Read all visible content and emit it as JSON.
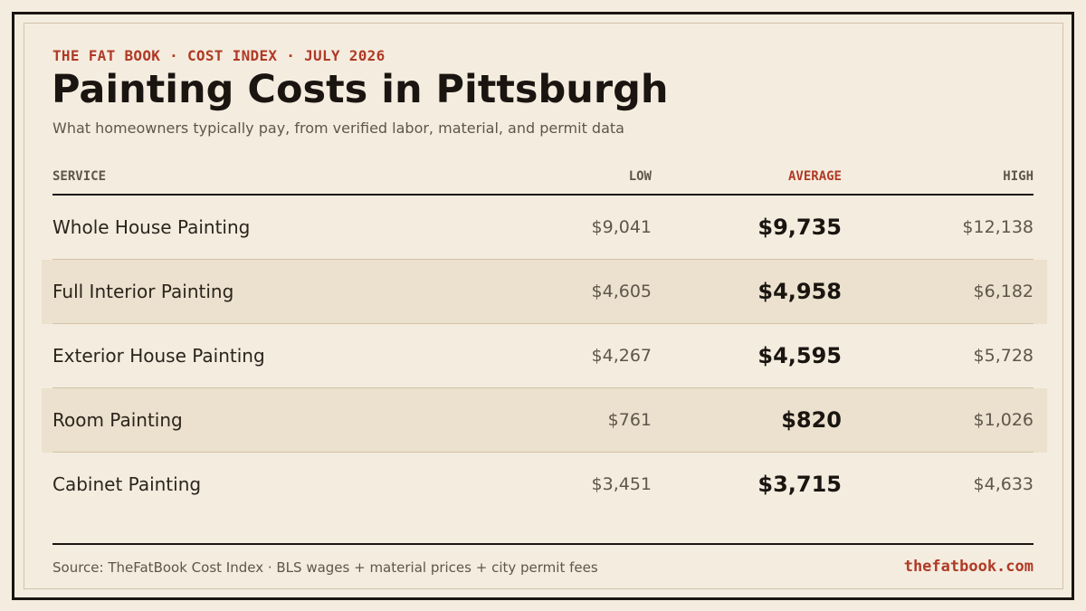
{
  "kicker": "THE FAT BOOK · COST INDEX · JULY 2026",
  "title": "Painting Costs in Pittsburgh",
  "subtitle": "What homeowners typically pay, from verified labor, material, and permit data",
  "columns": {
    "service": "SERVICE",
    "low": "LOW",
    "average": "AVERAGE",
    "high": "HIGH"
  },
  "rows": [
    {
      "service": "Whole House Painting",
      "low": "$9,041",
      "average": "$9,735",
      "high": "$12,138"
    },
    {
      "service": "Full Interior Painting",
      "low": "$4,605",
      "average": "$4,958",
      "high": "$6,182"
    },
    {
      "service": "Exterior House Painting",
      "low": "$4,267",
      "average": "$4,595",
      "high": "$5,728"
    },
    {
      "service": "Room Painting",
      "low": "$761",
      "average": "$820",
      "high": "$1,026"
    },
    {
      "service": "Cabinet Painting",
      "low": "$3,451",
      "average": "$3,715",
      "high": "$4,633"
    }
  ],
  "footer": {
    "source": "Source: TheFatBook Cost Index · BLS wages + material prices + city permit fees",
    "site": "thefatbook.com"
  },
  "colors": {
    "background": "#f4ecdf",
    "accent": "#b03a26",
    "ink": "#1a1510",
    "muted": "#5f564b",
    "row_shade": "#ece1ce"
  }
}
